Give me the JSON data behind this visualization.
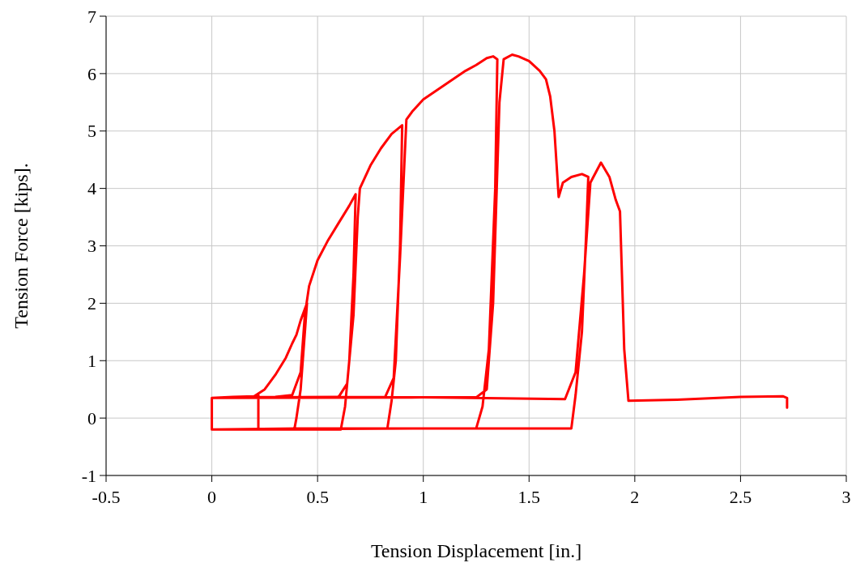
{
  "chart_data": {
    "type": "line",
    "xlabel": "Tension Displacement [in.]",
    "ylabel": "Tension Force [kips].",
    "xlim": [
      -0.5,
      3
    ],
    "ylim": [
      -1,
      7
    ],
    "xticks": [
      -0.5,
      0,
      0.5,
      1,
      1.5,
      2,
      2.5,
      3
    ],
    "yticks": [
      -1,
      0,
      1,
      2,
      3,
      4,
      5,
      6,
      7
    ],
    "grid": true,
    "marker": "none",
    "line_style": "solid",
    "series": [
      {
        "color": "#ff0000",
        "x": [
          0,
          0,
          0.1,
          0.2,
          0.22,
          0.22,
          0.1,
          0,
          0,
          0.2,
          0.25,
          0.3,
          0.35,
          0.38,
          0.4,
          0.42,
          0.45,
          0.44,
          0.42,
          0.4,
          0.39,
          0.2,
          0,
          0,
          0.3,
          0.38,
          0.42,
          0.44,
          0.46,
          0.5,
          0.55,
          0.6,
          0.65,
          0.68,
          0.67,
          0.65,
          0.63,
          0.61,
          0.3,
          0,
          0,
          0.3,
          0.6,
          0.64,
          0.67,
          0.69,
          0.7,
          0.75,
          0.8,
          0.85,
          0.9,
          0.89,
          0.87,
          0.85,
          0.83,
          0.4,
          0,
          0,
          0.4,
          0.82,
          0.86,
          0.89,
          0.92,
          0.95,
          1,
          1.1,
          1.2,
          1.25,
          1.3,
          1.33,
          1.35,
          1.34,
          1.31,
          1.28,
          1.25,
          0.6,
          0,
          0,
          0.6,
          1.25,
          1.3,
          1.33,
          1.36,
          1.38,
          1.42,
          1.45,
          1.5,
          1.55,
          1.58,
          1.6,
          1.62,
          1.64,
          1.66,
          1.7,
          1.75,
          1.78,
          1.77,
          1.75,
          1.72,
          1.7,
          1,
          0,
          0,
          1,
          1.67,
          1.72,
          1.76,
          1.79,
          1.84,
          1.88,
          1.91,
          1.93,
          1.95,
          1.97,
          2.2,
          2.5,
          2.7,
          2.72,
          2.72
        ],
        "values": [
          -0.2,
          0.35,
          0.37,
          0.38,
          0.4,
          -0.2,
          -0.2,
          -0.2,
          0.35,
          0.38,
          0.5,
          0.75,
          1.05,
          1.3,
          1.45,
          1.7,
          2.0,
          1.5,
          0.5,
          0,
          -0.2,
          -0.2,
          -0.2,
          0.35,
          0.37,
          0.4,
          0.8,
          1.8,
          2.3,
          2.75,
          3.1,
          3.4,
          3.7,
          3.9,
          2.5,
          1,
          0.2,
          -0.2,
          -0.2,
          -0.2,
          0.35,
          0.36,
          0.37,
          0.6,
          1.8,
          3.5,
          4.0,
          4.4,
          4.7,
          4.95,
          5.1,
          3,
          1,
          0.3,
          -0.18,
          -0.18,
          -0.2,
          0.35,
          0.36,
          0.37,
          0.7,
          2.8,
          5.2,
          5.35,
          5.55,
          5.8,
          6.05,
          6.15,
          6.27,
          6.3,
          6.25,
          4,
          1.2,
          0.2,
          -0.18,
          -0.18,
          -0.2,
          0.35,
          0.36,
          0.36,
          0.5,
          2,
          5.5,
          6.25,
          6.33,
          6.3,
          6.22,
          6.05,
          5.9,
          5.6,
          5,
          3.85,
          4.1,
          4.2,
          4.25,
          4.2,
          3.2,
          1.5,
          0.4,
          -0.18,
          -0.18,
          -0.2,
          0.35,
          0.36,
          0.33,
          0.8,
          2.5,
          4.1,
          4.45,
          4.2,
          3.8,
          3.6,
          1.2,
          0.3,
          0.32,
          0.37,
          0.38,
          0.35,
          0.18
        ]
      }
    ]
  }
}
